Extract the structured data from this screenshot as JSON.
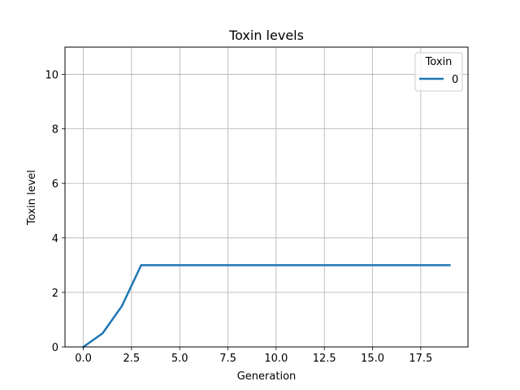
{
  "chart_data": {
    "type": "line",
    "title": "Toxin levels",
    "xlabel": "Generation",
    "ylabel": "Toxin level",
    "xlim": [
      -0.95,
      19.95
    ],
    "ylim": [
      0,
      11
    ],
    "xticks": [
      0.0,
      2.5,
      5.0,
      7.5,
      10.0,
      12.5,
      15.0,
      17.5
    ],
    "xtick_labels": [
      "0.0",
      "2.5",
      "5.0",
      "7.5",
      "10.0",
      "12.5",
      "15.0",
      "17.5"
    ],
    "yticks": [
      0,
      2,
      4,
      6,
      8,
      10
    ],
    "ytick_labels": [
      "0",
      "2",
      "4",
      "6",
      "8",
      "10"
    ],
    "grid": true,
    "legend": {
      "title": "Toxin",
      "placement": "top-right"
    },
    "series": [
      {
        "name": "0",
        "color": "#1f77b4",
        "x": [
          0,
          1,
          2,
          3,
          4,
          5,
          6,
          7,
          8,
          9,
          10,
          11,
          12,
          13,
          14,
          15,
          16,
          17,
          18,
          19
        ],
        "y": [
          0,
          0.5,
          1.5,
          3,
          3,
          3,
          3,
          3,
          3,
          3,
          3,
          3,
          3,
          3,
          3,
          3,
          3,
          3,
          3,
          3
        ]
      }
    ]
  }
}
